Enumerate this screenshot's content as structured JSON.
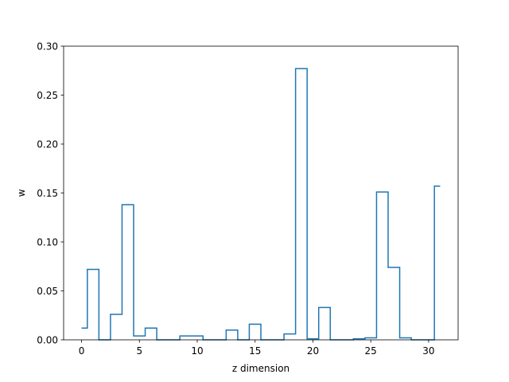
{
  "chart_data": {
    "type": "line",
    "drawstyle": "steps-mid",
    "title": "",
    "xlabel": "z dimension",
    "ylabel": "w",
    "xlim": [
      -1.55,
      32.55
    ],
    "ylim": [
      0.0,
      0.3
    ],
    "grid": false,
    "x_ticks": [
      0,
      5,
      10,
      15,
      20,
      25,
      30
    ],
    "x_tick_labels": [
      "0",
      "5",
      "10",
      "15",
      "20",
      "25",
      "30"
    ],
    "y_ticks": [
      0.0,
      0.05,
      0.1,
      0.15,
      0.2,
      0.25,
      0.3
    ],
    "y_tick_labels": [
      "0.00",
      "0.05",
      "0.10",
      "0.15",
      "0.20",
      "0.25",
      "0.30"
    ],
    "series": [
      {
        "color": "#1f77b4",
        "x": [
          0,
          1,
          2,
          3,
          4,
          5,
          6,
          7,
          8,
          9,
          10,
          11,
          12,
          13,
          14,
          15,
          16,
          17,
          18,
          19,
          20,
          21,
          22,
          23,
          24,
          25,
          26,
          27,
          28,
          29,
          30,
          31
        ],
        "values": [
          0.012,
          0.072,
          0.0,
          0.026,
          0.138,
          0.004,
          0.012,
          0.0,
          0.0,
          0.004,
          0.004,
          0.0,
          0.0,
          0.01,
          0.0,
          0.016,
          0.0,
          0.0,
          0.006,
          0.277,
          0.001,
          0.033,
          0.0,
          0.0,
          0.001,
          0.002,
          0.151,
          0.074,
          0.002,
          0.0,
          0.0,
          0.157
        ]
      }
    ]
  }
}
